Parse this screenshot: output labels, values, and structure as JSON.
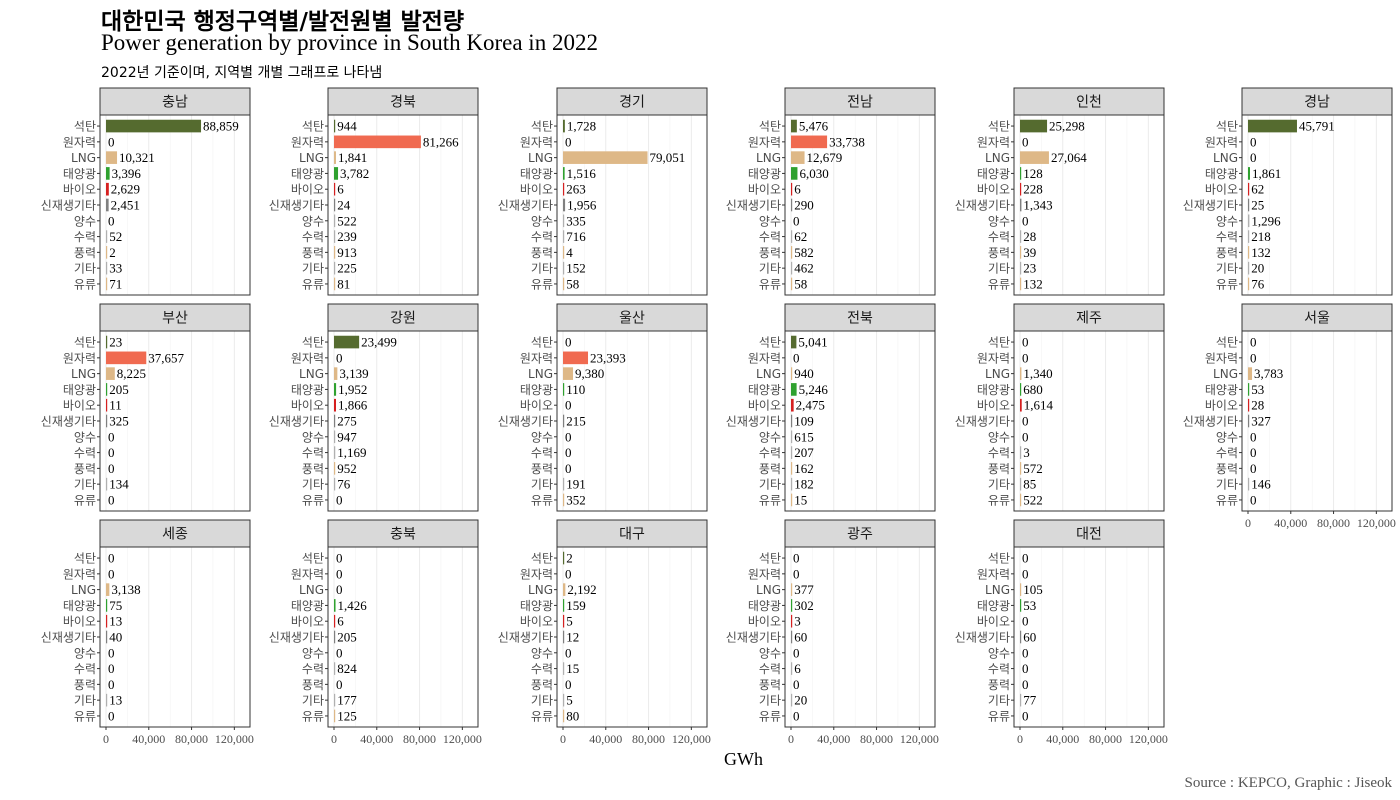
{
  "title_ko": "대한민국 행정구역별/발전원별 발전량",
  "title_en": "Power generation by province in South Korea in 2022",
  "subtitle": "2022년 기준이며, 지역별 개별 그래프로 나타냄",
  "caption": "Source : KEPCO, Graphic : Jiseok",
  "chart_data": {
    "type": "bar",
    "orientation": "horizontal",
    "facets": true,
    "xlabel": "GWh",
    "xlim": [
      0,
      120000
    ],
    "xticks": [
      0,
      40000,
      80000,
      120000
    ],
    "xtick_labels": [
      "0",
      "40,000",
      "80,000",
      "120,000"
    ],
    "grid": true,
    "categories": [
      "석탄",
      "원자력",
      "LNG",
      "태양광",
      "바이오",
      "신재생기타",
      "양수",
      "수력",
      "풍력",
      "기타",
      "유류"
    ],
    "colors": [
      "#556b2f",
      "#f06a50",
      "#deb887",
      "#2fa12f",
      "#d62020",
      "#808080",
      "#b0b0b0",
      "#b0b0b0",
      "#deb887",
      "#b0b0b0",
      "#deb887"
    ],
    "panels": [
      {
        "name": "충남",
        "values": [
          88859,
          0,
          10321,
          3396,
          2629,
          2451,
          0,
          52,
          2,
          33,
          71
        ]
      },
      {
        "name": "경북",
        "values": [
          944,
          81266,
          1841,
          3782,
          6,
          24,
          522,
          239,
          913,
          225,
          81
        ]
      },
      {
        "name": "경기",
        "values": [
          1728,
          0,
          79051,
          1516,
          263,
          1956,
          335,
          716,
          4,
          152,
          58
        ]
      },
      {
        "name": "전남",
        "values": [
          5476,
          33738,
          12679,
          6030,
          6,
          290,
          0,
          62,
          582,
          462,
          58
        ]
      },
      {
        "name": "인천",
        "values": [
          25298,
          0,
          27064,
          128,
          228,
          1343,
          0,
          28,
          39,
          23,
          132
        ]
      },
      {
        "name": "경남",
        "values": [
          45791,
          0,
          0,
          1861,
          62,
          25,
          1296,
          218,
          132,
          20,
          76
        ]
      },
      {
        "name": "부산",
        "values": [
          23,
          37657,
          8225,
          205,
          11,
          325,
          0,
          0,
          0,
          134,
          0
        ]
      },
      {
        "name": "강원",
        "values": [
          23499,
          0,
          3139,
          1952,
          1866,
          275,
          947,
          1169,
          952,
          76,
          0
        ]
      },
      {
        "name": "울산",
        "values": [
          0,
          23393,
          9380,
          110,
          0,
          215,
          0,
          0,
          0,
          191,
          352
        ]
      },
      {
        "name": "전북",
        "values": [
          5041,
          0,
          940,
          5246,
          2475,
          109,
          615,
          207,
          162,
          182,
          15
        ]
      },
      {
        "name": "제주",
        "values": [
          0,
          0,
          1340,
          680,
          1614,
          0,
          0,
          3,
          572,
          85,
          522
        ]
      },
      {
        "name": "서울",
        "values": [
          0,
          0,
          3783,
          53,
          28,
          327,
          0,
          0,
          0,
          146,
          0
        ]
      },
      {
        "name": "세종",
        "values": [
          0,
          0,
          3138,
          75,
          13,
          40,
          0,
          0,
          0,
          13,
          0
        ]
      },
      {
        "name": "충북",
        "values": [
          0,
          0,
          0,
          1426,
          6,
          205,
          0,
          824,
          0,
          177,
          125
        ]
      },
      {
        "name": "대구",
        "values": [
          2,
          0,
          2192,
          159,
          5,
          12,
          0,
          15,
          0,
          5,
          80
        ]
      },
      {
        "name": "광주",
        "values": [
          0,
          0,
          377,
          302,
          3,
          60,
          0,
          6,
          0,
          20,
          0
        ]
      },
      {
        "name": "대전",
        "values": [
          0,
          0,
          105,
          53,
          0,
          60,
          0,
          0,
          0,
          77,
          0
        ]
      }
    ]
  }
}
